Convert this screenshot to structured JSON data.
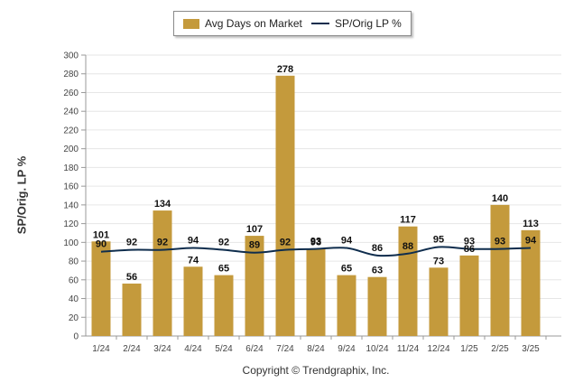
{
  "legend": {
    "bar_label": "Avg Days on Market",
    "line_label": "SP/Orig LP %"
  },
  "copyright": "Copyright © Trendgraphix, Inc.",
  "colors": {
    "bar": "#c49a3c",
    "line": "#0f2d4d",
    "grid": "#e6e6e6",
    "axis": "#999999"
  },
  "chart_data": {
    "type": "bar",
    "title": "",
    "xlabel": "",
    "ylabel": "SP/Orig. LP %",
    "ylim": [
      0,
      300
    ],
    "yticks": [
      0,
      20,
      40,
      60,
      80,
      100,
      120,
      140,
      160,
      180,
      200,
      220,
      240,
      260,
      280,
      300
    ],
    "grid": true,
    "legend_position": "top-center",
    "categories": [
      "1/24",
      "2/24",
      "3/24",
      "4/24",
      "5/24",
      "6/24",
      "7/24",
      "8/24",
      "9/24",
      "10/24",
      "11/24",
      "12/24",
      "1/25",
      "2/25",
      "3/25"
    ],
    "series": [
      {
        "name": "Avg Days on Market",
        "type": "bar",
        "values": [
          101,
          56,
          134,
          74,
          65,
          107,
          278,
          93,
          65,
          63,
          117,
          73,
          86,
          140,
          113
        ]
      },
      {
        "name": "SP/Orig LP %",
        "type": "line",
        "values": [
          90,
          92,
          92,
          94,
          92,
          89,
          92,
          93,
          94,
          86,
          88,
          95,
          93,
          93,
          94
        ]
      }
    ]
  }
}
